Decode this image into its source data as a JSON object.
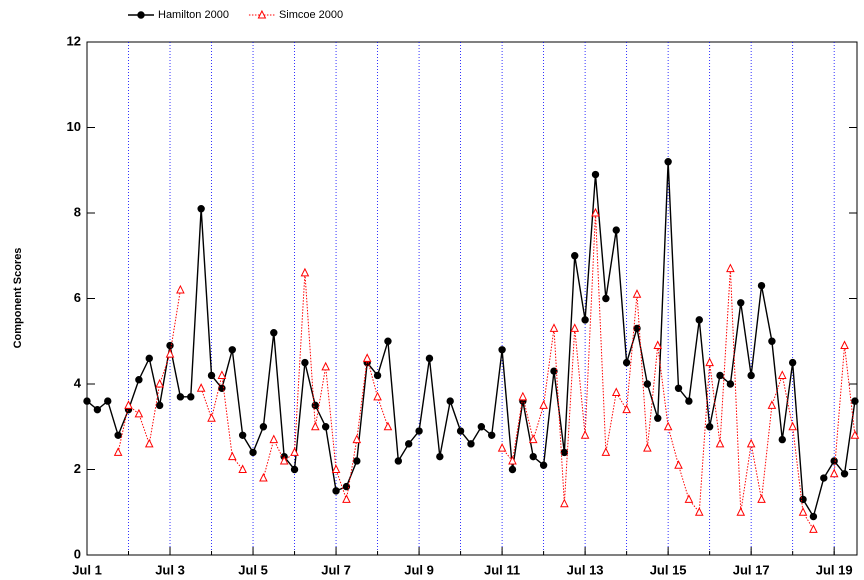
{
  "chart_data": {
    "type": "line",
    "ylabel": "Component Scores",
    "x": [
      1,
      1.25,
      1.5,
      1.75,
      2,
      2.25,
      2.5,
      2.75,
      3,
      3.25,
      3.5,
      3.75,
      4,
      4.25,
      4.5,
      4.75,
      5,
      5.25,
      5.5,
      5.75,
      6,
      6.25,
      6.5,
      6.75,
      7,
      7.25,
      7.5,
      7.75,
      8,
      8.25,
      8.5,
      8.75,
      9,
      9.25,
      9.5,
      9.75,
      10,
      10.25,
      10.5,
      10.75,
      11,
      11.25,
      11.5,
      11.75,
      12,
      12.25,
      12.5,
      12.75,
      13,
      13.25,
      13.5,
      13.75,
      14,
      14.25,
      14.5,
      14.75,
      15,
      15.25,
      15.5,
      15.75,
      16,
      16.25,
      16.5,
      16.75,
      17,
      17.25,
      17.5,
      17.75,
      18,
      18.25,
      18.5,
      18.75,
      19,
      19.25,
      19.5
    ],
    "series": [
      {
        "name": "Hamilton 2000",
        "color": "#000000",
        "marker": "circle",
        "dash": false,
        "values": [
          3.6,
          3.4,
          3.6,
          2.8,
          3.4,
          4.1,
          4.6,
          3.5,
          4.9,
          3.7,
          3.7,
          8.1,
          4.2,
          3.9,
          4.8,
          2.8,
          2.4,
          3.0,
          5.2,
          2.3,
          2.0,
          4.5,
          3.5,
          3.0,
          1.5,
          1.6,
          2.2,
          4.5,
          4.2,
          5.0,
          2.2,
          2.6,
          2.9,
          4.6,
          2.3,
          3.6,
          2.9,
          2.6,
          3.0,
          2.8,
          4.8,
          2.0,
          3.6,
          2.3,
          2.1,
          4.3,
          2.4,
          7.0,
          5.5,
          8.9,
          6.0,
          7.6,
          4.5,
          5.3,
          4.0,
          3.2,
          9.2,
          3.9,
          3.6,
          5.5,
          3.0,
          4.2,
          4.0,
          5.9,
          4.2,
          6.3,
          5.0,
          2.7,
          4.5,
          1.3,
          0.9,
          1.8,
          2.2,
          1.9,
          3.6
        ]
      },
      {
        "name": "Simcoe 2000",
        "color": "#ff0000",
        "marker": "triangle",
        "dash": true,
        "values": [
          null,
          null,
          null,
          2.4,
          3.5,
          3.3,
          2.6,
          4.0,
          4.7,
          6.2,
          null,
          3.9,
          3.2,
          4.2,
          2.3,
          2.0,
          null,
          1.8,
          2.7,
          2.2,
          2.4,
          6.6,
          3.0,
          4.4,
          2.0,
          1.3,
          2.7,
          4.6,
          3.7,
          3.0,
          null,
          null,
          null,
          null,
          null,
          null,
          null,
          null,
          null,
          null,
          2.5,
          2.2,
          3.7,
          2.7,
          3.5,
          5.3,
          1.2,
          5.3,
          2.8,
          8.0,
          2.4,
          3.8,
          3.4,
          6.1,
          2.5,
          4.9,
          3.0,
          2.1,
          1.3,
          1.0,
          4.5,
          2.6,
          6.7,
          1.0,
          2.6,
          1.3,
          3.5,
          4.2,
          3.0,
          1.0,
          0.6,
          null,
          1.9,
          4.9,
          2.8
        ]
      }
    ],
    "xlim": [
      1,
      19.55
    ],
    "xticks": [
      {
        "value": 1,
        "label": "Jul 1"
      },
      {
        "value": 3,
        "label": "Jul 3"
      },
      {
        "value": 5,
        "label": "Jul 5"
      },
      {
        "value": 7,
        "label": "Jul 7"
      },
      {
        "value": 9,
        "label": "Jul 9"
      },
      {
        "value": 11,
        "label": "Jul 11"
      },
      {
        "value": 13,
        "label": "Jul 13"
      },
      {
        "value": 15,
        "label": "Jul 15"
      },
      {
        "value": 17,
        "label": "Jul 17"
      },
      {
        "value": 19,
        "label": "Jul 19"
      }
    ],
    "xgrid": [
      2,
      3,
      4,
      5,
      6,
      7,
      8,
      9,
      10,
      11,
      12,
      13,
      14,
      15,
      16,
      17,
      18,
      19
    ],
    "xgrid_color": "#0000ff",
    "ylim": [
      0,
      12
    ],
    "yticks": [
      0,
      2,
      4,
      6,
      8,
      10,
      12
    ],
    "legend": "top-left"
  }
}
